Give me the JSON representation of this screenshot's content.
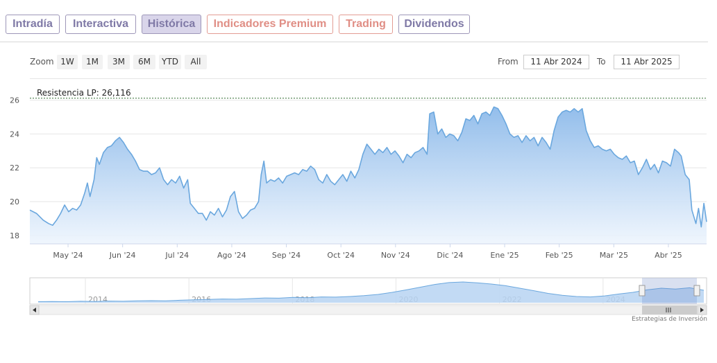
{
  "tabs": [
    {
      "label": "Intradía",
      "state": "normal"
    },
    {
      "label": "Interactiva",
      "state": "normal"
    },
    {
      "label": "Histórica",
      "state": "active"
    },
    {
      "label": "Indicadores Premium",
      "state": "premium"
    },
    {
      "label": "Trading",
      "state": "premium"
    },
    {
      "label": "Dividendos",
      "state": "normal"
    }
  ],
  "zoom": {
    "label": "Zoom",
    "buttons": [
      "1W",
      "1M",
      "3M",
      "6M",
      "YTD",
      "All"
    ]
  },
  "range": {
    "from_label": "From",
    "from_value": "11 Abr 2024",
    "to_label": "To",
    "to_value": "11 Abr 2025"
  },
  "colors": {
    "line": "#6aa7de",
    "fill_top": "#8dbaea",
    "fill_bottom": "#eef5fd",
    "resistance": "#2f6a2f",
    "tab_border": "#9d96b8",
    "premium": "#e08e85"
  },
  "chart_data": {
    "type": "area",
    "ylim": [
      17.5,
      26.6
    ],
    "yticks": [
      18,
      20,
      22,
      24,
      26
    ],
    "xlabels": [
      "May '24",
      "Jun '24",
      "Jul '24",
      "Ago '24",
      "Sep '24",
      "Oct '24",
      "Nov '24",
      "Dic '24",
      "Ene '25",
      "Feb '25",
      "Mar '25",
      "Abr '25"
    ],
    "annotation": {
      "label": "Resistencia LP: 26,116",
      "value": 26.116
    },
    "series": [
      {
        "values": [
          [
            0.0,
            19.5
          ],
          [
            0.5,
            19.3
          ],
          [
            1.0,
            18.9
          ],
          [
            1.4,
            18.7
          ],
          [
            1.7,
            18.6
          ],
          [
            2.0,
            18.9
          ],
          [
            2.3,
            19.3
          ],
          [
            2.6,
            19.8
          ],
          [
            2.9,
            19.4
          ],
          [
            3.2,
            19.6
          ],
          [
            3.5,
            19.5
          ],
          [
            3.8,
            19.8
          ],
          [
            4.1,
            20.5
          ],
          [
            4.3,
            21.1
          ],
          [
            4.5,
            20.3
          ],
          [
            4.8,
            21.3
          ],
          [
            5.0,
            22.6
          ],
          [
            5.2,
            22.2
          ],
          [
            5.5,
            22.9
          ],
          [
            5.8,
            23.2
          ],
          [
            6.1,
            23.3
          ],
          [
            6.4,
            23.6
          ],
          [
            6.7,
            23.8
          ],
          [
            7.0,
            23.5
          ],
          [
            7.3,
            23.1
          ],
          [
            7.6,
            22.8
          ],
          [
            7.9,
            22.4
          ],
          [
            8.2,
            21.9
          ],
          [
            8.5,
            21.8
          ],
          [
            8.8,
            21.8
          ],
          [
            9.1,
            21.6
          ],
          [
            9.4,
            21.7
          ],
          [
            9.7,
            22.0
          ],
          [
            10.0,
            21.3
          ],
          [
            10.3,
            21.0
          ],
          [
            10.6,
            21.3
          ],
          [
            10.9,
            21.1
          ],
          [
            11.2,
            21.5
          ],
          [
            11.5,
            20.8
          ],
          [
            11.8,
            21.3
          ],
          [
            12.0,
            19.9
          ],
          [
            12.3,
            19.6
          ],
          [
            12.6,
            19.3
          ],
          [
            12.9,
            19.3
          ],
          [
            13.2,
            18.9
          ],
          [
            13.5,
            19.4
          ],
          [
            13.8,
            19.2
          ],
          [
            14.1,
            19.6
          ],
          [
            14.4,
            19.1
          ],
          [
            14.7,
            19.5
          ],
          [
            15.0,
            20.3
          ],
          [
            15.3,
            20.6
          ],
          [
            15.6,
            19.4
          ],
          [
            15.9,
            19.0
          ],
          [
            16.2,
            19.2
          ],
          [
            16.5,
            19.5
          ],
          [
            16.8,
            19.6
          ],
          [
            17.1,
            20.0
          ],
          [
            17.3,
            21.6
          ],
          [
            17.5,
            22.4
          ],
          [
            17.7,
            21.1
          ],
          [
            18.0,
            21.3
          ],
          [
            18.3,
            21.2
          ],
          [
            18.6,
            21.4
          ],
          [
            18.9,
            21.1
          ],
          [
            19.2,
            21.5
          ],
          [
            19.5,
            21.6
          ],
          [
            19.8,
            21.7
          ],
          [
            20.1,
            21.6
          ],
          [
            20.4,
            21.9
          ],
          [
            20.7,
            21.8
          ],
          [
            21.0,
            22.1
          ],
          [
            21.3,
            21.9
          ],
          [
            21.6,
            21.3
          ],
          [
            21.9,
            21.1
          ],
          [
            22.2,
            21.6
          ],
          [
            22.5,
            21.2
          ],
          [
            22.8,
            21.0
          ],
          [
            23.1,
            21.3
          ],
          [
            23.4,
            21.6
          ],
          [
            23.7,
            21.2
          ],
          [
            24.0,
            21.8
          ],
          [
            24.3,
            21.4
          ],
          [
            24.6,
            21.9
          ],
          [
            24.9,
            22.8
          ],
          [
            25.2,
            23.4
          ],
          [
            25.5,
            23.1
          ],
          [
            25.8,
            22.8
          ],
          [
            26.1,
            23.1
          ],
          [
            26.4,
            22.9
          ],
          [
            26.7,
            23.2
          ],
          [
            27.0,
            22.8
          ],
          [
            27.3,
            23.0
          ],
          [
            27.6,
            22.7
          ],
          [
            27.9,
            22.3
          ],
          [
            28.2,
            22.8
          ],
          [
            28.5,
            22.6
          ],
          [
            28.8,
            22.9
          ],
          [
            29.1,
            23.0
          ],
          [
            29.4,
            23.2
          ],
          [
            29.7,
            22.8
          ],
          [
            29.9,
            25.2
          ],
          [
            30.2,
            25.3
          ],
          [
            30.5,
            24.0
          ],
          [
            30.8,
            24.3
          ],
          [
            31.1,
            23.8
          ],
          [
            31.4,
            24.0
          ],
          [
            31.7,
            23.9
          ],
          [
            32.0,
            23.6
          ],
          [
            32.3,
            24.1
          ],
          [
            32.6,
            24.9
          ],
          [
            32.9,
            24.8
          ],
          [
            33.2,
            25.1
          ],
          [
            33.5,
            24.6
          ],
          [
            33.8,
            25.2
          ],
          [
            34.1,
            25.3
          ],
          [
            34.4,
            25.1
          ],
          [
            34.7,
            25.6
          ],
          [
            35.0,
            25.5
          ],
          [
            35.3,
            25.1
          ],
          [
            35.6,
            24.6
          ],
          [
            35.9,
            24.0
          ],
          [
            36.2,
            23.8
          ],
          [
            36.5,
            23.9
          ],
          [
            36.8,
            23.5
          ],
          [
            37.1,
            23.9
          ],
          [
            37.4,
            23.6
          ],
          [
            37.7,
            23.8
          ],
          [
            38.0,
            23.3
          ],
          [
            38.3,
            23.8
          ],
          [
            38.6,
            23.5
          ],
          [
            38.9,
            23.1
          ],
          [
            39.2,
            24.2
          ],
          [
            39.5,
            25.0
          ],
          [
            39.8,
            25.3
          ],
          [
            40.1,
            25.4
          ],
          [
            40.4,
            25.3
          ],
          [
            40.7,
            25.5
          ],
          [
            41.0,
            25.3
          ],
          [
            41.3,
            25.5
          ],
          [
            41.6,
            24.2
          ],
          [
            41.9,
            23.6
          ],
          [
            42.2,
            23.2
          ],
          [
            42.5,
            23.3
          ],
          [
            42.8,
            23.1
          ],
          [
            43.1,
            23.0
          ],
          [
            43.4,
            23.1
          ],
          [
            43.7,
            22.8
          ],
          [
            44.0,
            22.6
          ],
          [
            44.3,
            22.5
          ],
          [
            44.6,
            22.7
          ],
          [
            44.9,
            22.3
          ],
          [
            45.2,
            22.4
          ],
          [
            45.5,
            21.6
          ],
          [
            45.8,
            22.0
          ],
          [
            46.1,
            22.5
          ],
          [
            46.4,
            21.9
          ],
          [
            46.7,
            22.2
          ],
          [
            47.0,
            21.7
          ],
          [
            47.3,
            22.4
          ],
          [
            47.6,
            22.3
          ],
          [
            47.9,
            22.1
          ],
          [
            48.2,
            23.1
          ],
          [
            48.5,
            22.9
          ],
          [
            48.7,
            22.7
          ],
          [
            49.0,
            21.6
          ],
          [
            49.3,
            21.3
          ],
          [
            49.5,
            19.5
          ],
          [
            49.8,
            18.7
          ],
          [
            50.0,
            19.6
          ],
          [
            50.2,
            18.5
          ],
          [
            50.4,
            19.9
          ],
          [
            50.6,
            18.8
          ]
        ]
      }
    ]
  },
  "navigator": {
    "labels": [
      "2014",
      "2016",
      "2018",
      "2020",
      "2022",
      "2024"
    ],
    "values": [
      0.05,
      0.06,
      0.05,
      0.07,
      0.06,
      0.08,
      0.07,
      0.09,
      0.1,
      0.09,
      0.12,
      0.14,
      0.16,
      0.18,
      0.17,
      0.2,
      0.23,
      0.22,
      0.26,
      0.24,
      0.28,
      0.27,
      0.3,
      0.34,
      0.4,
      0.5,
      0.62,
      0.75,
      0.88,
      0.97,
      1.0,
      0.96,
      0.9,
      0.82,
      0.7,
      0.58,
      0.45,
      0.36,
      0.3,
      0.28,
      0.33,
      0.42,
      0.5,
      0.62,
      0.7,
      0.66,
      0.72,
      0.6
    ]
  },
  "watermark": "Estrategias de Inversión"
}
